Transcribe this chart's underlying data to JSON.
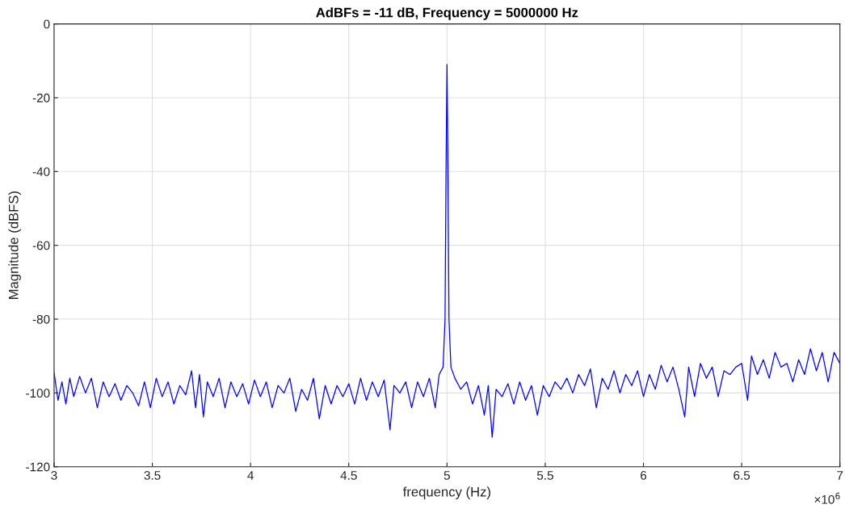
{
  "chart_data": {
    "type": "line",
    "title": "AdBFs = -11 dB, Frequency = 5000000 Hz",
    "xlabel": "frequency (Hz)",
    "ylabel": "Magnitude (dBFS)",
    "x": [
      3,
      3.02,
      3.04,
      3.06,
      3.08,
      3.1,
      3.13,
      3.16,
      3.19,
      3.22,
      3.25,
      3.28,
      3.31,
      3.34,
      3.37,
      3.4,
      3.43,
      3.46,
      3.49,
      3.52,
      3.55,
      3.58,
      3.61,
      3.64,
      3.67,
      3.7,
      3.72,
      3.74,
      3.76,
      3.78,
      3.81,
      3.84,
      3.87,
      3.9,
      3.93,
      3.96,
      3.99,
      4.02,
      4.05,
      4.08,
      4.11,
      4.14,
      4.17,
      4.2,
      4.23,
      4.26,
      4.29,
      4.32,
      4.35,
      4.38,
      4.41,
      4.44,
      4.47,
      4.5,
      4.53,
      4.56,
      4.59,
      4.62,
      4.65,
      4.68,
      4.71,
      4.73,
      4.76,
      4.79,
      4.82,
      4.85,
      4.88,
      4.91,
      4.94,
      4.96,
      4.98,
      4.99,
      4.995,
      5,
      5.005,
      5.01,
      5.02,
      5.04,
      5.07,
      5.1,
      5.13,
      5.16,
      5.19,
      5.21,
      5.23,
      5.25,
      5.28,
      5.31,
      5.34,
      5.37,
      5.4,
      5.43,
      5.46,
      5.49,
      5.52,
      5.55,
      5.58,
      5.61,
      5.64,
      5.67,
      5.7,
      5.73,
      5.76,
      5.79,
      5.82,
      5.85,
      5.88,
      5.91,
      5.94,
      5.97,
      6,
      6.03,
      6.06,
      6.09,
      6.12,
      6.15,
      6.18,
      6.21,
      6.23,
      6.26,
      6.29,
      6.32,
      6.35,
      6.38,
      6.41,
      6.44,
      6.47,
      6.5,
      6.53,
      6.55,
      6.58,
      6.61,
      6.64,
      6.67,
      6.7,
      6.73,
      6.76,
      6.79,
      6.82,
      6.85,
      6.88,
      6.91,
      6.94,
      6.97,
      7
    ],
    "series": [
      {
        "color": "#0000ff",
        "values": [
          -94.5,
          -102,
          -97,
          -103,
          -96,
          -101,
          -95.5,
          -100,
          -96,
          -104,
          -97,
          -101,
          -97.5,
          -102,
          -98,
          -100,
          -103.5,
          -97,
          -104,
          -96,
          -101,
          -97,
          -103,
          -98,
          -100.5,
          -94,
          -104,
          -95,
          -106.5,
          -97,
          -101,
          -96,
          -104,
          -97,
          -101,
          -97.5,
          -103,
          -96.5,
          -101,
          -97,
          -104,
          -98,
          -100,
          -96,
          -105,
          -99,
          -102,
          -96,
          -107,
          -98,
          -103,
          -98,
          -101,
          -97.5,
          -103,
          -96,
          -102,
          -97,
          -101,
          -96.5,
          -110,
          -98,
          -100,
          -97,
          -104,
          -97,
          -101,
          -96,
          -104,
          -95,
          -93,
          -80,
          -40,
          -11,
          -40,
          -80,
          -93,
          -96,
          -99,
          -97,
          -103,
          -98,
          -106,
          -98,
          -112,
          -99,
          -101,
          -97.5,
          -103,
          -97,
          -102,
          -98,
          -106,
          -98,
          -101,
          -97,
          -99,
          -96,
          -100,
          -95,
          -98,
          -93.5,
          -104,
          -96,
          -99,
          -94,
          -100,
          -95,
          -98,
          -94,
          -101,
          -95,
          -99,
          -92.5,
          -97,
          -93,
          -99,
          -106.5,
          -93,
          -101,
          -92,
          -96,
          -93,
          -101,
          -94,
          -95,
          -93,
          -92,
          -102,
          -90,
          -95,
          -91,
          -96,
          -89,
          -93,
          -92,
          -97,
          -91,
          -95,
          -88,
          -94,
          -89,
          -97,
          -89,
          -92
        ]
      }
    ],
    "xlim": [
      3,
      7
    ],
    "xticks": [
      3,
      3.5,
      4,
      4.5,
      5,
      5.5,
      6,
      6.5,
      7
    ],
    "ylim": [
      -120,
      0
    ],
    "yticks": [
      -120,
      -100,
      -80,
      -60,
      -40,
      -20,
      0
    ],
    "grid": true,
    "line_style": "solid",
    "marker": "none",
    "annotations": [
      "×10$^{6}$"
    ]
  }
}
